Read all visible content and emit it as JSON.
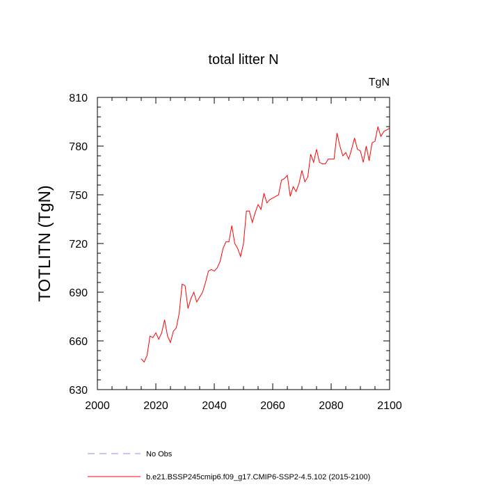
{
  "chart_data": {
    "type": "line",
    "title": "total litter N",
    "units_label": "TgN",
    "ylabel": "TOTLITN  (TgN)",
    "xlabel": "",
    "xlim": [
      2000,
      2100
    ],
    "ylim": [
      630,
      810
    ],
    "xticks": [
      2000,
      2020,
      2040,
      2060,
      2080,
      2100
    ],
    "yticks": [
      630,
      660,
      690,
      720,
      750,
      780,
      810
    ],
    "xtick_labels": [
      "2000",
      "2020",
      "2040",
      "2060",
      "2080",
      "2100"
    ],
    "ytick_labels": [
      "630",
      "660",
      "690",
      "720",
      "750",
      "780",
      "810"
    ],
    "series": [
      {
        "name": "b.e21.BSSP245cmip6.f09_g17.CMIP6-SSP2-4.5.102 (2015-2100)",
        "color": "#ff0000",
        "style": "solid",
        "x": [
          2015,
          2016,
          2017,
          2018,
          2019,
          2020,
          2021,
          2022,
          2023,
          2024,
          2025,
          2026,
          2027,
          2028,
          2029,
          2030,
          2031,
          2032,
          2033,
          2034,
          2035,
          2036,
          2037,
          2038,
          2039,
          2040,
          2041,
          2042,
          2043,
          2044,
          2045,
          2046,
          2047,
          2048,
          2049,
          2050,
          2051,
          2052,
          2053,
          2054,
          2055,
          2056,
          2057,
          2058,
          2059,
          2060,
          2061,
          2062,
          2063,
          2064,
          2065,
          2066,
          2067,
          2068,
          2069,
          2070,
          2071,
          2072,
          2073,
          2074,
          2075,
          2076,
          2077,
          2078,
          2079,
          2080,
          2081,
          2082,
          2083,
          2084,
          2085,
          2086,
          2087,
          2088,
          2089,
          2090,
          2091,
          2092,
          2093,
          2094,
          2095,
          2096,
          2097,
          2098,
          2099,
          2100
        ],
        "y": [
          649,
          647,
          651,
          663,
          662,
          665,
          661,
          665,
          673,
          663,
          659,
          666,
          668,
          677,
          695,
          694,
          680,
          686,
          690,
          684,
          687,
          690,
          696,
          703,
          704,
          703,
          705,
          709,
          717,
          721,
          721,
          731,
          720,
          717,
          712,
          720,
          740,
          740,
          733,
          739,
          744,
          741,
          751,
          745,
          747,
          748,
          749,
          750,
          759,
          760,
          762,
          749,
          755,
          752,
          757,
          765,
          758,
          761,
          775,
          770,
          778,
          770,
          769,
          769,
          772,
          772,
          772,
          788,
          780,
          774,
          776,
          772,
          778,
          785,
          778,
          777,
          770,
          780,
          771,
          782,
          783,
          792,
          786,
          789,
          790,
          791
        ]
      },
      {
        "name": "No Obs",
        "color": "#8888ff",
        "style": "dashed",
        "x": [],
        "y": []
      }
    ],
    "legend": {
      "placement": "bottom-left",
      "entries": [
        "No Obs",
        "b.e21.BSSP245cmip6.f09_g17.CMIP6-SSP2-4.5.102 (2015-2100)"
      ]
    }
  }
}
